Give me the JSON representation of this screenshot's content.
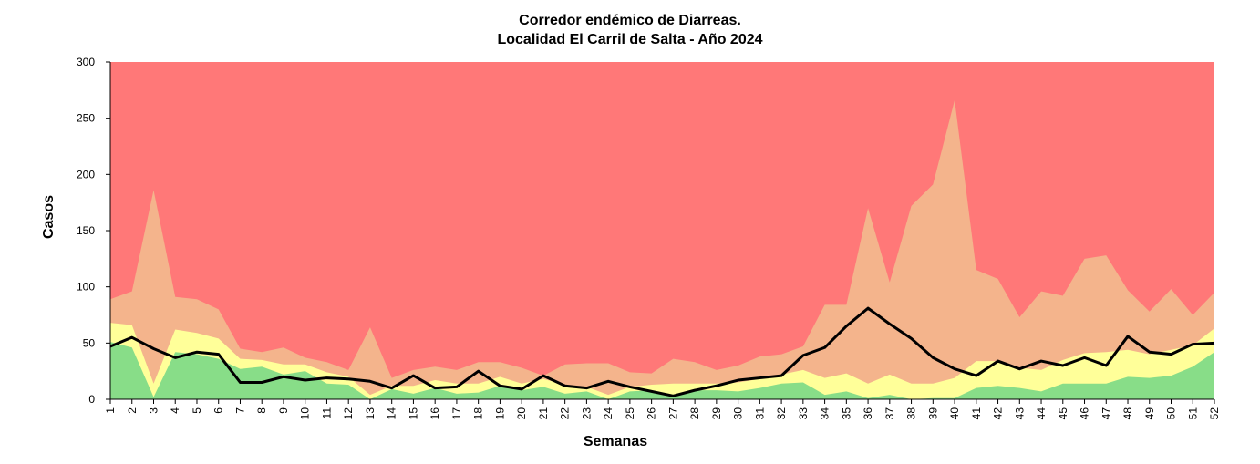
{
  "chart_data": {
    "type": "area",
    "title": "Corredor endémico de Diarreas.",
    "subtitle": "Localidad El Carril de Salta - Año 2024",
    "xlabel": "Semanas",
    "ylabel": "Casos",
    "ylim": [
      0,
      300
    ],
    "yticks": [
      0,
      50,
      100,
      150,
      200,
      250,
      300
    ],
    "x": [
      1,
      2,
      3,
      4,
      5,
      6,
      7,
      8,
      9,
      10,
      11,
      12,
      13,
      14,
      15,
      16,
      17,
      18,
      19,
      20,
      21,
      22,
      23,
      24,
      25,
      26,
      27,
      28,
      29,
      30,
      31,
      32,
      33,
      34,
      35,
      36,
      37,
      38,
      39,
      40,
      41,
      42,
      43,
      44,
      45,
      46,
      47,
      48,
      49,
      50,
      51,
      52
    ],
    "grid": false,
    "legend": "none",
    "colors": {
      "exito": "#88dd88",
      "seguridad": "#ffff99",
      "alerta": "#f4b48c",
      "epidemia": "#ff7878",
      "casos_line": "#000000"
    },
    "series": [
      {
        "key": "exito",
        "values": [
          51,
          46,
          2,
          42,
          40,
          36,
          27,
          29,
          22,
          25,
          14,
          13,
          0,
          9,
          5,
          10,
          5,
          6,
          12,
          8,
          11,
          5,
          7,
          0,
          7,
          8,
          3,
          8,
          8,
          7,
          10,
          14,
          15,
          4,
          7,
          1,
          4,
          0,
          1,
          1,
          10,
          12,
          10,
          7,
          14,
          14,
          14,
          20,
          19,
          21,
          29,
          42
        ]
      },
      {
        "key": "seguridad",
        "values": [
          68,
          66,
          14,
          62,
          59,
          54,
          36,
          35,
          31,
          31,
          24,
          20,
          4,
          12,
          12,
          17,
          14,
          14,
          20,
          14,
          18,
          13,
          11,
          4,
          11,
          13,
          14,
          14,
          14,
          15,
          18,
          22,
          26,
          19,
          23,
          14,
          22,
          14,
          14,
          19,
          34,
          34,
          28,
          26,
          35,
          41,
          42,
          44,
          40,
          44,
          48,
          63
        ]
      },
      {
        "key": "alerta",
        "values": [
          89,
          96,
          186,
          91,
          89,
          80,
          45,
          42,
          46,
          37,
          33,
          26,
          64,
          19,
          26,
          29,
          26,
          33,
          33,
          28,
          21,
          31,
          32,
          32,
          24,
          23,
          36,
          33,
          26,
          30,
          38,
          40,
          47,
          84,
          84,
          170,
          104,
          172,
          191,
          266,
          115,
          107,
          73,
          96,
          92,
          125,
          128,
          97,
          78,
          98,
          75,
          95
        ]
      },
      {
        "key": "epidemia",
        "values": [
          300,
          300,
          300,
          300,
          300,
          300,
          300,
          300,
          300,
          300,
          300,
          300,
          300,
          300,
          300,
          300,
          300,
          300,
          300,
          300,
          300,
          300,
          300,
          300,
          300,
          300,
          300,
          300,
          300,
          300,
          300,
          300,
          300,
          300,
          300,
          300,
          300,
          300,
          300,
          300,
          300,
          300,
          300,
          300,
          300,
          300,
          300,
          300,
          300,
          300,
          300,
          300
        ]
      },
      {
        "key": "casos",
        "values": [
          47,
          55,
          45,
          37,
          42,
          40,
          15,
          15,
          20,
          17,
          19,
          18,
          16,
          10,
          21,
          10,
          11,
          25,
          12,
          9,
          21,
          12,
          10,
          16,
          11,
          7,
          3,
          8,
          12,
          17,
          19,
          21,
          39,
          46,
          65,
          81,
          67,
          54,
          37,
          27,
          21,
          34,
          27,
          34,
          30,
          37,
          30,
          56,
          42,
          40,
          49,
          50
        ]
      }
    ]
  }
}
